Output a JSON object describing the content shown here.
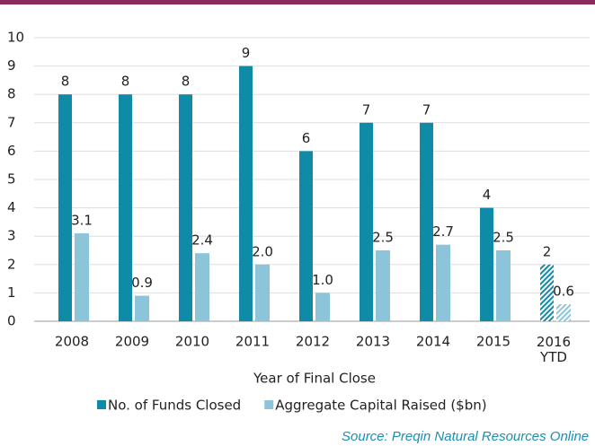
{
  "chart_data": {
    "type": "bar",
    "categories": [
      "2008",
      "2009",
      "2010",
      "2011",
      "2012",
      "2013",
      "2014",
      "2015",
      "2016 YTD"
    ],
    "series": [
      {
        "name": "No. of Funds Closed",
        "color": "#0f8ba8",
        "values": [
          8,
          8,
          8,
          9,
          6,
          7,
          7,
          4,
          2
        ]
      },
      {
        "name": "Aggregate Capital Raised ($bn)",
        "color": "#8cc4da",
        "values": [
          3.1,
          0.9,
          2.4,
          2.0,
          1.0,
          2.5,
          2.7,
          2.5,
          0.6
        ],
        "value_labels": [
          "3.1",
          "0.9",
          "2.4",
          "2.0",
          "1.0",
          "2.5",
          "2.7",
          "2.5",
          "0.6"
        ]
      }
    ],
    "ylim": [
      0,
      10
    ],
    "yticks": [
      0,
      1,
      2,
      3,
      4,
      5,
      6,
      7,
      8,
      9,
      10
    ],
    "grid": true,
    "x_label": "Year of Final Close",
    "legend": "bottom",
    "partial_last": true,
    "source": "Source: Preqin Natural Resources Online"
  }
}
